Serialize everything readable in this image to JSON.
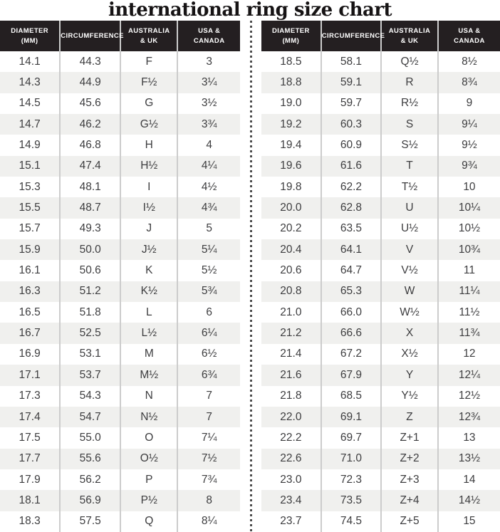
{
  "title": "international ring size chart",
  "column_keys": [
    "diameter-mm",
    "circumference",
    "australia-uk",
    "usa-canada"
  ],
  "colors": {
    "header_bg": "#241f21",
    "header_text": "#ffffff",
    "row_stripe": "#f0f0ee",
    "column_divider": "#cccccc",
    "cell_text": "#3d3d3f",
    "dotted_separator": "#4c4c4c"
  },
  "chart_data": [
    {
      "type": "table",
      "name": "left",
      "columns": [
        "DIAMETER\n(mm)",
        "CIRCUMFERENCE",
        "AUSTRALIA\n& UK",
        "USA &\nCANADA"
      ],
      "rows": [
        [
          "14.1",
          "44.3",
          "F",
          "3"
        ],
        [
          "14.3",
          "44.9",
          "F½",
          "3¼"
        ],
        [
          "14.5",
          "45.6",
          "G",
          "3½"
        ],
        [
          "14.7",
          "46.2",
          "G½",
          "3¾"
        ],
        [
          "14.9",
          "46.8",
          "H",
          "4"
        ],
        [
          "15.1",
          "47.4",
          "H½",
          "4¼"
        ],
        [
          "15.3",
          "48.1",
          "I",
          "4½"
        ],
        [
          "15.5",
          "48.7",
          "I½",
          "4¾"
        ],
        [
          "15.7",
          "49.3",
          "J",
          "5"
        ],
        [
          "15.9",
          "50.0",
          "J½",
          "5¼"
        ],
        [
          "16.1",
          "50.6",
          "K",
          "5½"
        ],
        [
          "16.3",
          "51.2",
          "K½",
          "5¾"
        ],
        [
          "16.5",
          "51.8",
          "L",
          "6"
        ],
        [
          "16.7",
          "52.5",
          "L½",
          "6¼"
        ],
        [
          "16.9",
          "53.1",
          "M",
          "6½"
        ],
        [
          "17.1",
          "53.7",
          "M½",
          "6¾"
        ],
        [
          "17.3",
          "54.3",
          "N",
          "7"
        ],
        [
          "17.4",
          "54.7",
          "N½",
          "7"
        ],
        [
          "17.5",
          "55.0",
          "O",
          "7¼"
        ],
        [
          "17.7",
          "55.6",
          "O½",
          "7½"
        ],
        [
          "17.9",
          "56.2",
          "P",
          "7¾"
        ],
        [
          "18.1",
          "56.9",
          "P½",
          "8"
        ],
        [
          "18.3",
          "57.5",
          "Q",
          "8¼"
        ]
      ]
    },
    {
      "type": "table",
      "name": "right",
      "columns": [
        "DIAMETER\n(mm)",
        "CIRCUMFERENCE",
        "AUSTRALIA\n& UK",
        "USA &\nCANADA"
      ],
      "rows": [
        [
          "18.5",
          "58.1",
          "Q½",
          "8½"
        ],
        [
          "18.8",
          "59.1",
          "R",
          "8¾"
        ],
        [
          "19.0",
          "59.7",
          "R½",
          "9"
        ],
        [
          "19.2",
          "60.3",
          "S",
          "9¼"
        ],
        [
          "19.4",
          "60.9",
          "S½",
          "9½"
        ],
        [
          "19.6",
          "61.6",
          "T",
          "9¾"
        ],
        [
          "19.8",
          "62.2",
          "T½",
          "10"
        ],
        [
          "20.0",
          "62.8",
          "U",
          "10¼"
        ],
        [
          "20.2",
          "63.5",
          "U½",
          "10½"
        ],
        [
          "20.4",
          "64.1",
          "V",
          "10¾"
        ],
        [
          "20.6",
          "64.7",
          "V½",
          "11"
        ],
        [
          "20.8",
          "65.3",
          "W",
          "11¼"
        ],
        [
          "21.0",
          "66.0",
          "W½",
          "11½"
        ],
        [
          "21.2",
          "66.6",
          "X",
          "11¾"
        ],
        [
          "21.4",
          "67.2",
          "X½",
          "12"
        ],
        [
          "21.6",
          "67.9",
          "Y",
          "12¼"
        ],
        [
          "21.8",
          "68.5",
          "Y½",
          "12½"
        ],
        [
          "22.0",
          "69.1",
          "Z",
          "12¾"
        ],
        [
          "22.2",
          "69.7",
          "Z+1",
          "13"
        ],
        [
          "22.6",
          "71.0",
          "Z+2",
          "13½"
        ],
        [
          "23.0",
          "72.3",
          "Z+3",
          "14"
        ],
        [
          "23.4",
          "73.5",
          "Z+4",
          "14½"
        ],
        [
          "23.7",
          "74.5",
          "Z+5",
          "15"
        ]
      ]
    }
  ]
}
